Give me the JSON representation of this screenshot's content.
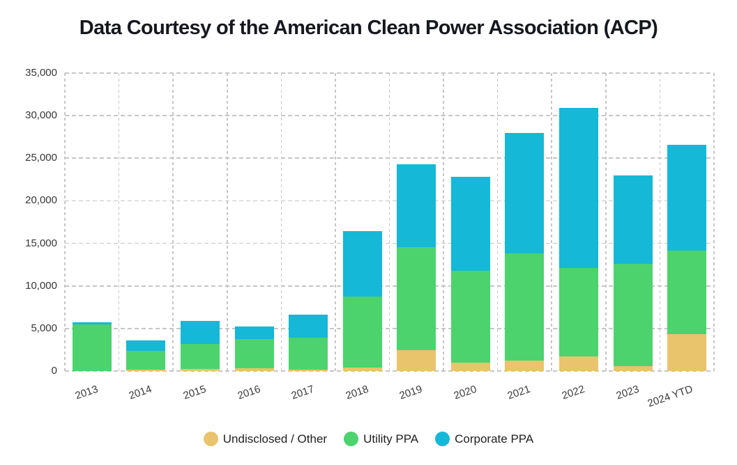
{
  "chart_data": {
    "type": "bar",
    "stacked": true,
    "title": "Data Courtesy of the American Clean Power Association (ACP)",
    "categories": [
      "2013",
      "2014",
      "2015",
      "2016",
      "2017",
      "2018",
      "2019",
      "2020",
      "2021",
      "2022",
      "2023",
      "2024 YTD"
    ],
    "series": [
      {
        "key": "undisclosed-other",
        "name": "Undisclosed / Other",
        "color": "#e9c46d",
        "values": [
          0,
          200,
          250,
          300,
          200,
          400,
          2450,
          1000,
          1250,
          1750,
          550,
          4350
        ]
      },
      {
        "key": "utility-ppa",
        "name": "Utility PPA",
        "color": "#4cd36d",
        "values": [
          5450,
          2150,
          2950,
          3450,
          3750,
          8350,
          12100,
          10750,
          12550,
          10350,
          12050,
          9800
        ]
      },
      {
        "key": "corporate-ppa",
        "name": "Corporate PPA",
        "color": "#15b8d6",
        "values": [
          250,
          1250,
          2700,
          1450,
          2700,
          7700,
          9750,
          11050,
          14150,
          18850,
          10350,
          12450
        ]
      }
    ],
    "totals": [
      5700,
      3600,
      5900,
      5200,
      6650,
      16450,
      24300,
      22800,
      27950,
      30950,
      22950,
      26600
    ],
    "xlabel": "",
    "ylabel": "",
    "ylim": [
      0,
      35000
    ],
    "ytick_step": 5000,
    "yticks": [
      {
        "v": 0,
        "label": "0"
      },
      {
        "v": 5000,
        "label": "5,000"
      },
      {
        "v": 10000,
        "label": "10,000"
      },
      {
        "v": 15000,
        "label": "15,000"
      },
      {
        "v": 20000,
        "label": "20,000"
      },
      {
        "v": 25000,
        "label": "25,000"
      },
      {
        "v": 30000,
        "label": "30,000"
      },
      {
        "v": 35000,
        "label": "35,000"
      }
    ],
    "grid": "dashed",
    "legend_position": "bottom"
  }
}
